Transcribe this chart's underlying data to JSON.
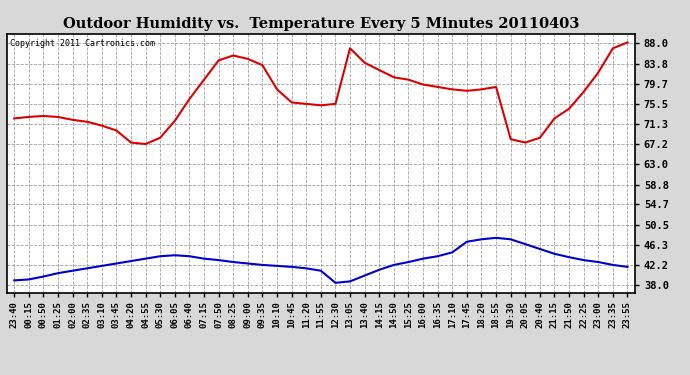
{
  "title": "Outdoor Humidity vs.  Temperature Every 5 Minutes 20110403",
  "copyright": "Copyright 2011 Cartronics.com",
  "yticks": [
    38.0,
    42.2,
    46.3,
    50.5,
    54.7,
    58.8,
    63.0,
    67.2,
    71.3,
    75.5,
    79.7,
    83.8,
    88.0
  ],
  "ylim": [
    36.5,
    90.0
  ],
  "bg_color": "#d8d8d8",
  "plot_bg": "#ffffff",
  "red_color": "#dd0000",
  "blue_color": "#0000cc",
  "xtick_labels": [
    "23:40",
    "00:15",
    "00:50",
    "01:25",
    "02:00",
    "02:35",
    "03:10",
    "03:45",
    "04:20",
    "04:55",
    "05:30",
    "06:05",
    "06:40",
    "07:15",
    "07:50",
    "08:25",
    "09:00",
    "09:35",
    "10:10",
    "10:45",
    "11:20",
    "11:55",
    "12:30",
    "13:05",
    "13:40",
    "14:15",
    "14:50",
    "15:25",
    "16:00",
    "16:35",
    "17:10",
    "17:45",
    "18:20",
    "18:55",
    "19:30",
    "20:05",
    "20:40",
    "21:15",
    "21:50",
    "22:25",
    "23:00",
    "23:35",
    "23:55"
  ],
  "red_values": [
    72.5,
    72.8,
    73.0,
    72.8,
    72.2,
    71.8,
    71.0,
    70.0,
    67.5,
    67.2,
    68.5,
    72.0,
    76.5,
    80.5,
    84.5,
    85.5,
    84.8,
    83.5,
    78.5,
    75.8,
    75.5,
    75.2,
    75.5,
    87.0,
    84.0,
    82.5,
    81.0,
    80.5,
    79.5,
    79.0,
    78.5,
    78.2,
    78.5,
    79.0,
    68.2,
    67.5,
    68.5,
    72.5,
    74.5,
    78.0,
    82.0,
    87.0,
    88.2
  ],
  "blue_values": [
    39.0,
    39.2,
    39.8,
    40.5,
    41.0,
    41.5,
    42.0,
    42.5,
    43.0,
    43.5,
    44.0,
    44.2,
    44.0,
    43.5,
    43.2,
    42.8,
    42.5,
    42.2,
    42.0,
    41.8,
    41.5,
    41.0,
    38.5,
    38.8,
    40.0,
    41.2,
    42.2,
    42.8,
    43.5,
    44.0,
    44.8,
    47.0,
    47.5,
    47.8,
    47.5,
    46.5,
    45.5,
    44.5,
    43.8,
    43.2,
    42.8,
    42.2,
    41.8
  ]
}
